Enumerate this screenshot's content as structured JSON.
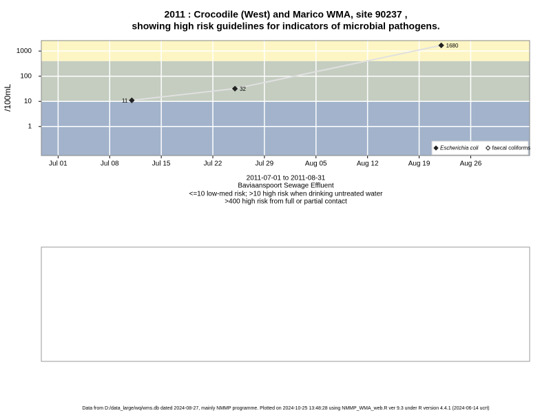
{
  "chart_data": {
    "type": "scatter",
    "title": [
      "2011 : Crocodile (West) and Marico WMA, site 90237 ,",
      "showing high risk guidelines for indicators of microbial pathogens."
    ],
    "subtitle": [
      "2011-07-01 to 2011-08-31",
      "Baviaanspoort Sewage Effluent",
      "<=10 low-med risk; >10 high risk when drinking untreated water",
      ">400 high risk from full or partial contact"
    ],
    "y_label": "/100mL",
    "footer": "Data from D:/data_large/wq/wms.db dated 2024-08-27, mainly NMMP programme. Plotted on 2024-10-25 13:48:28 using NMMP_WMA_web.R ver 9.3 under R version 4.4.1 (2024-06-14 ucrt)",
    "x": [
      "2011-07-11",
      "2011-07-25",
      "2011-08-22"
    ],
    "series": [
      {
        "name": "Escherichia coli",
        "color": "#222222",
        "values": [
          11,
          32,
          1680
        ]
      },
      {
        "name": "faecal coliforms",
        "color": "#ffffff",
        "values": [
          null,
          null,
          null
        ]
      }
    ],
    "line_color": "#e0e0e0",
    "xlim": [
      "2011-06-29",
      "2011-09-03"
    ],
    "xticks": [
      {
        "value": "2011-07-01",
        "label": "Jul 01"
      },
      {
        "value": "2011-07-08",
        "label": "Jul 08"
      },
      {
        "value": "2011-07-15",
        "label": "Jul 15"
      },
      {
        "value": "2011-07-22",
        "label": "Jul 22"
      },
      {
        "value": "2011-07-29",
        "label": "Jul 29"
      },
      {
        "value": "2011-08-05",
        "label": "Aug 05"
      },
      {
        "value": "2011-08-12",
        "label": "Aug 12"
      },
      {
        "value": "2011-08-19",
        "label": "Aug 19"
      },
      {
        "value": "2011-08-26",
        "label": "Aug 26"
      }
    ],
    "ylim": [
      0.07,
      2600
    ],
    "yticks": [
      1,
      10,
      100,
      1000
    ],
    "log_y": true,
    "grid": true,
    "thresholds": [
      10,
      400
    ],
    "band_colors": [
      "#a2b3cb",
      "#c4cdc0",
      "#fdf6c4"
    ],
    "legend": "bottom-right"
  }
}
